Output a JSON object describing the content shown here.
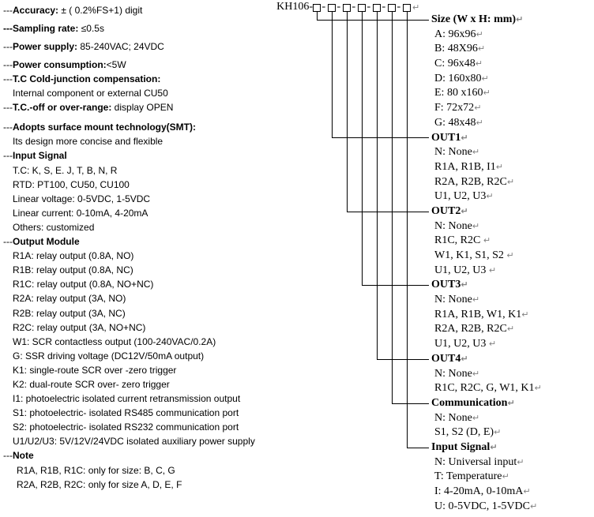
{
  "page": {
    "background_color": "#ffffff",
    "text_color": "#000000",
    "line_color": "#000000",
    "return_mark_color": "#808080",
    "return_glyph": "↵"
  },
  "model_code": {
    "prefix": "KH106-",
    "box_count": 7,
    "separator": "-"
  },
  "specifications": {
    "lines": [
      {
        "pre": "---",
        "bold": "Accuracy:",
        "rest": " ± ( 0.2%FS+1) digit",
        "kind": "spec"
      },
      {
        "pre": "",
        "bold": "---Sampling rate:",
        "rest": " ≤0.5s",
        "kind": "spec"
      },
      {
        "pre": "---",
        "bold": "Power supply:",
        "rest": " 85-240VAC; 24VDC",
        "kind": "spec"
      },
      {
        "pre": "---",
        "bold": "Power consumption:",
        "rest": "<5W",
        "kind": "spec_last"
      },
      {
        "pre": "---",
        "bold": "T.C Cold-junction compensation:",
        "rest": ""
      },
      {
        "pre": "",
        "bold": "",
        "rest": "Internal component or external CU50",
        "indent": 1
      },
      {
        "pre": "---",
        "bold": "T.C.-off or over-range:",
        "rest": " display OPEN"
      },
      {
        "pre": "---",
        "bold": "Adopts surface mount technology(SMT):",
        "rest": "",
        "gap": true
      },
      {
        "pre": "",
        "bold": "",
        "rest": "Its design more concise and flexible",
        "indent": 1
      },
      {
        "pre": "---",
        "bold": "Input Signal",
        "rest": ""
      },
      {
        "pre": "",
        "bold": "",
        "rest": "T.C: K, S, E. J, T, B, N, R",
        "indent": 1
      },
      {
        "pre": "",
        "bold": "",
        "rest": "RTD: PT100, CU50, CU100",
        "indent": 1
      },
      {
        "pre": "",
        "bold": "",
        "rest": "Linear voltage: 0-5VDC, 1-5VDC",
        "indent": 1
      },
      {
        "pre": "",
        "bold": "",
        "rest": "Linear current: 0-10mA, 4-20mA",
        "indent": 1
      },
      {
        "pre": "",
        "bold": "",
        "rest": "Others: customized",
        "indent": 1
      },
      {
        "pre": "---",
        "bold": "Output Module",
        "rest": ""
      },
      {
        "pre": "",
        "bold": "",
        "rest": "R1A: relay output (0.8A, NO)",
        "indent": 1
      },
      {
        "pre": "",
        "bold": "",
        "rest": "R1B: relay output (0.8A, NC)",
        "indent": 1
      },
      {
        "pre": "",
        "bold": "",
        "rest": "R1C: relay output (0.8A, NO+NC)",
        "indent": 1
      },
      {
        "pre": "",
        "bold": "",
        "rest": "R2A: relay output (3A, NO)",
        "indent": 1
      },
      {
        "pre": "",
        "bold": "",
        "rest": "R2B: relay output (3A, NC)",
        "indent": 1
      },
      {
        "pre": "",
        "bold": "",
        "rest": "R2C: relay output (3A, NO+NC)",
        "indent": 1
      },
      {
        "pre": "",
        "bold": "",
        "rest": "W1: SCR contactless output (100-240VAC/0.2A)",
        "indent": 1
      },
      {
        "pre": "",
        "bold": "",
        "rest": "G: SSR driving voltage (DC12V/50mA output)",
        "indent": 1
      },
      {
        "pre": "",
        "bold": "",
        "rest": "K1: single-route SCR over -zero trigger",
        "indent": 1
      },
      {
        "pre": "",
        "bold": "",
        "rest": "K2: dual-route SCR over- zero trigger",
        "indent": 1
      },
      {
        "pre": "",
        "bold": "",
        "rest": "I1: photoelectric isolated current retransmission output",
        "indent": 1
      },
      {
        "pre": "",
        "bold": "",
        "rest": "S1: photoelectric- isolated RS485 communication port",
        "indent": 1
      },
      {
        "pre": "",
        "bold": "",
        "rest": "S2: photoelectric- isolated RS232 communication port",
        "indent": 1
      },
      {
        "pre": "",
        "bold": "",
        "rest": "U1/U2/U3: 5V/12V/24VDC isolated auxiliary power supply",
        "indent": 1
      },
      {
        "pre": "---",
        "bold": "Note",
        "rest": ""
      },
      {
        "pre": "",
        "bold": "",
        "rest": "R1A, R1B, R1C: only for size: B, C, G",
        "indent": 2
      },
      {
        "pre": "",
        "bold": "",
        "rest": "R2A, R2B, R2C: only for size A, D, E, F",
        "indent": 2
      }
    ]
  },
  "order_guide": {
    "rows": [
      {
        "text": "Size (W x H: mm)",
        "kind": "section",
        "box": 1
      },
      {
        "text": "A: 96x96",
        "kind": "item"
      },
      {
        "text": "B: 48X96",
        "kind": "item"
      },
      {
        "text": "C: 96x48",
        "kind": "item"
      },
      {
        "text": "D: 160x80",
        "kind": "item"
      },
      {
        "text": "E: 80 x160",
        "kind": "item"
      },
      {
        "text": "F: 72x72",
        "kind": "item"
      },
      {
        "text": "G: 48x48",
        "kind": "item"
      },
      {
        "text": "OUT1",
        "kind": "section",
        "box": 2
      },
      {
        "text": "N: None",
        "kind": "item"
      },
      {
        "text": "R1A, R1B, I1",
        "kind": "item"
      },
      {
        "text": "R2A, R2B, R2C",
        "kind": "item"
      },
      {
        "text": "U1, U2, U3",
        "kind": "item"
      },
      {
        "text": "OUT2",
        "kind": "section",
        "box": 3
      },
      {
        "text": "N: None",
        "kind": "item"
      },
      {
        "text": "R1C, R2C ",
        "kind": "item"
      },
      {
        "text": "W1, K1, S1, S2 ",
        "kind": "item"
      },
      {
        "text": "U1, U2, U3 ",
        "kind": "item"
      },
      {
        "text": "OUT3",
        "kind": "section",
        "box": 4
      },
      {
        "text": "N: None",
        "kind": "item"
      },
      {
        "text": "R1A, R1B, W1, K1",
        "kind": "item"
      },
      {
        "text": "R2A, R2B, R2C",
        "kind": "item"
      },
      {
        "text": "U1, U2, U3 ",
        "kind": "item"
      },
      {
        "text": "OUT4",
        "kind": "section",
        "box": 5
      },
      {
        "text": "N: None",
        "kind": "item"
      },
      {
        "text": "R1C, R2C, G, W1, K1",
        "kind": "item"
      },
      {
        "text": "Communication",
        "kind": "section",
        "box": 6
      },
      {
        "text": "N: None",
        "kind": "item"
      },
      {
        "text": "S1, S2 (D, E)",
        "kind": "item"
      },
      {
        "text": "Input Signal",
        "kind": "section",
        "box": 7
      },
      {
        "text": "N: Universal input",
        "kind": "item"
      },
      {
        "text": "T: Temperature",
        "kind": "item"
      },
      {
        "text": "I: 4-20mA, 0-10mA",
        "kind": "item"
      },
      {
        "text": "U: 0-5VDC, 1-5VDC",
        "kind": "item"
      }
    ]
  }
}
